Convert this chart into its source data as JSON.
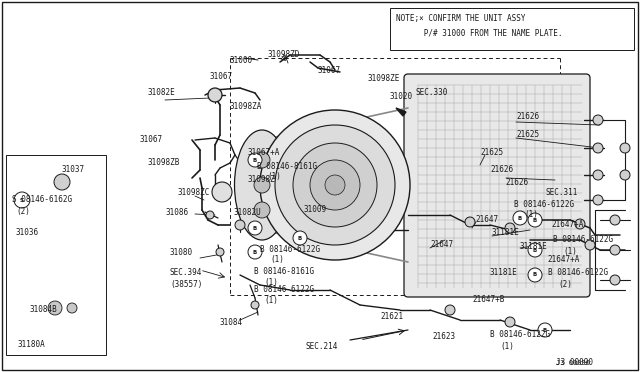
{
  "bg_color": "#ffffff",
  "line_color": "#1a1a1a",
  "note_text_1": "NOTE;× CONFIRM THE UNIT ASSY",
  "note_text_2": "      P/# 31000 FROM THE NAME PLATE.",
  "diagram_id": "J3 00090",
  "figsize": [
    6.4,
    3.72
  ],
  "dpi": 100
}
